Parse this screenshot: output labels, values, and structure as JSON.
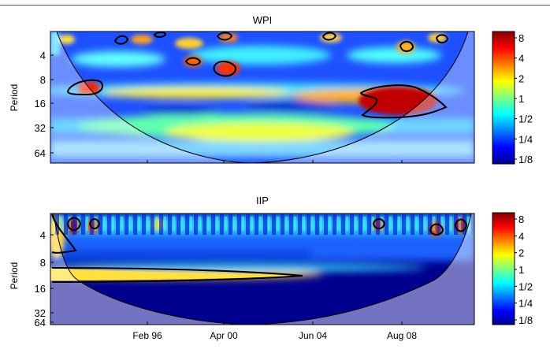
{
  "chart_data": [
    {
      "type": "heatmap",
      "title": "WPI",
      "ylabel": "Period",
      "y_ticks": [
        "4",
        "8",
        "16",
        "32",
        "64"
      ],
      "x_ticks": [
        "Feb 96",
        "Apr 00",
        "Jun 04",
        "Aug 08"
      ],
      "colorbar_ticks": [
        "8",
        "4",
        "2",
        "1",
        "1/2",
        "1/4",
        "1/8"
      ],
      "colormap": "jet",
      "cone_of_influence": true,
      "significant_regions": [
        {
          "date": "Jun 93",
          "period": 13
        },
        {
          "date": "Jan 07",
          "period": 16
        }
      ]
    },
    {
      "type": "heatmap",
      "title": "IIP",
      "ylabel": "Period",
      "y_ticks": [
        "4",
        "8",
        "16",
        "32",
        "64"
      ],
      "x_ticks": [
        "Feb 96",
        "Apr 00",
        "Jun 04",
        "Aug 08"
      ],
      "colorbar_ticks": [
        "8",
        "4",
        "2",
        "1",
        "1/2",
        "1/4",
        "1/8"
      ],
      "colormap": "jet",
      "cone_of_influence": true,
      "significant_regions": [
        {
          "date": "Jun 93",
          "period": 11
        }
      ]
    }
  ]
}
